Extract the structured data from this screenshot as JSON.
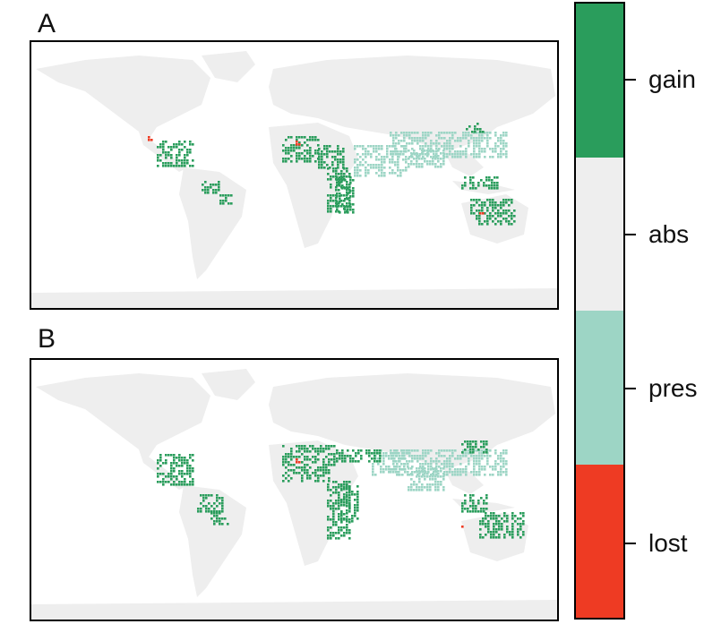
{
  "panels": [
    {
      "label": "A"
    },
    {
      "label": "B"
    }
  ],
  "legend": {
    "items": [
      {
        "label": "gain",
        "color": "#2a9d5c"
      },
      {
        "label": "abs",
        "color": "#eeeeee"
      },
      {
        "label": "pres",
        "color": "#9dd5c5"
      },
      {
        "label": "lost",
        "color": "#ee3b23"
      }
    ]
  },
  "colors": {
    "land": "#eeeeee",
    "frame": "#000000",
    "background": "#ffffff"
  }
}
